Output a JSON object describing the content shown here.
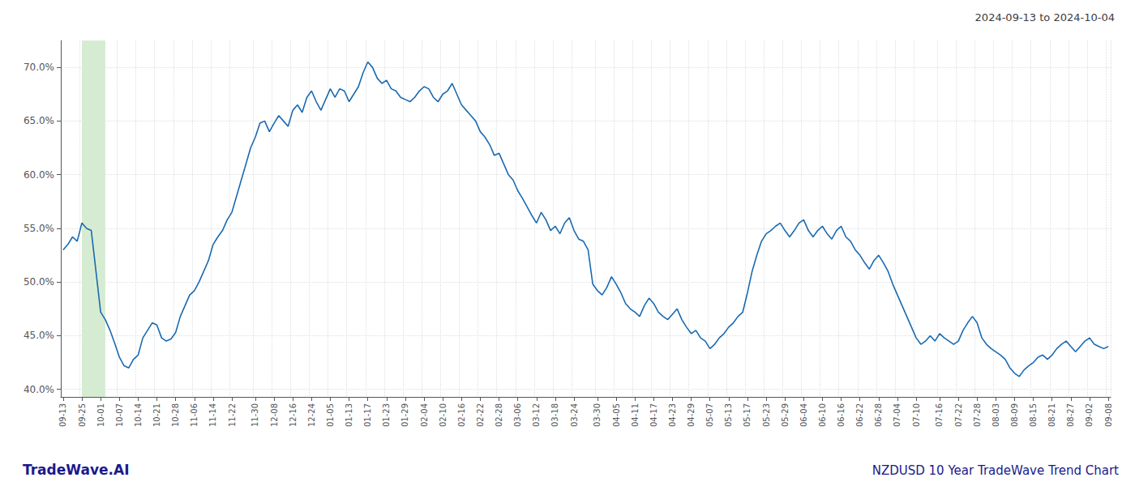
{
  "chart_data": {
    "type": "line",
    "title": "2024-09-13 to 2024-10-04",
    "annotations": [
      {
        "text": "TradeWave.AI",
        "color": "#1a1a8c"
      },
      {
        "text": "NZDUSD 10 Year TradeWave Trend Chart",
        "color": "#1a1a8c"
      }
    ],
    "color": "#1a6ab0",
    "grid": true,
    "highlight": {
      "x_start": 4,
      "x_end": 9,
      "color": "#d6ecd2"
    },
    "ylim": [
      0.393,
      0.725
    ],
    "yticks": [
      {
        "value": 0.4,
        "label": "40.0%"
      },
      {
        "value": 0.45,
        "label": "45.0%"
      },
      {
        "value": 0.5,
        "label": "50.0%"
      },
      {
        "value": 0.55,
        "label": "55.0%"
      },
      {
        "value": 0.6,
        "label": "60.0%"
      },
      {
        "value": 0.65,
        "label": "65.0%"
      },
      {
        "value": 0.7,
        "label": "70.0%"
      }
    ],
    "categories": [
      "09-13",
      null,
      null,
      null,
      "09-25",
      null,
      null,
      null,
      "10-01",
      null,
      null,
      null,
      "10-07",
      null,
      null,
      null,
      "10-14",
      null,
      null,
      null,
      "10-21",
      null,
      null,
      null,
      "10-28",
      null,
      null,
      null,
      "11-06",
      null,
      null,
      null,
      "11-14",
      null,
      null,
      null,
      "11-22",
      null,
      null,
      null,
      null,
      "11-30",
      null,
      null,
      null,
      "12-08",
      null,
      null,
      null,
      "12-16",
      null,
      null,
      null,
      "12-24",
      null,
      null,
      null,
      "01-05",
      null,
      null,
      null,
      "01-13",
      null,
      null,
      null,
      "01-17",
      null,
      null,
      null,
      "01-23",
      null,
      null,
      null,
      "01-29",
      null,
      null,
      null,
      "02-04",
      null,
      null,
      null,
      "02-10",
      null,
      null,
      null,
      "02-16",
      null,
      null,
      null,
      "02-22",
      null,
      null,
      null,
      "02-28",
      null,
      null,
      null,
      "03-06",
      null,
      null,
      null,
      "03-12",
      null,
      null,
      null,
      "03-18",
      null,
      null,
      null,
      "03-24",
      null,
      null,
      null,
      null,
      "03-30",
      null,
      null,
      null,
      "04-05",
      null,
      null,
      null,
      "04-11",
      null,
      null,
      null,
      "04-17",
      null,
      null,
      null,
      "04-23",
      null,
      null,
      null,
      "04-29",
      null,
      null,
      null,
      "05-07",
      null,
      null,
      null,
      "05-13",
      null,
      null,
      null,
      "05-17",
      null,
      null,
      null,
      "05-23",
      null,
      null,
      null,
      "05-29",
      null,
      null,
      null,
      "06-04",
      null,
      null,
      null,
      "06-10",
      null,
      null,
      null,
      "06-16",
      null,
      null,
      null,
      "06-22",
      null,
      null,
      null,
      "06-28",
      null,
      null,
      null,
      "07-04",
      null,
      null,
      null,
      "07-10",
      null,
      null,
      null,
      null,
      "07-16",
      null,
      null,
      null,
      "07-22",
      null,
      null,
      null,
      "07-28",
      null,
      null,
      null,
      "08-03",
      null,
      null,
      null,
      "08-09",
      null,
      null,
      null,
      "08-15",
      null,
      null,
      null,
      "08-21",
      null,
      null,
      null,
      "08-27",
      null,
      null,
      null,
      "09-02",
      null,
      null,
      null,
      "09-08"
    ],
    "values": [
      0.53,
      0.535,
      0.542,
      0.538,
      0.555,
      0.55,
      0.548,
      0.51,
      0.472,
      0.465,
      0.455,
      0.443,
      0.43,
      0.422,
      0.42,
      0.428,
      0.432,
      0.448,
      0.455,
      0.462,
      0.46,
      0.448,
      0.445,
      0.447,
      0.453,
      0.468,
      0.478,
      0.488,
      0.492,
      0.5,
      0.51,
      0.52,
      0.535,
      0.542,
      0.548,
      0.558,
      0.565,
      0.58,
      0.595,
      0.61,
      0.625,
      0.635,
      0.648,
      0.65,
      0.64,
      0.648,
      0.655,
      0.65,
      0.645,
      0.66,
      0.665,
      0.658,
      0.672,
      0.678,
      0.668,
      0.66,
      0.67,
      0.68,
      0.672,
      0.68,
      0.678,
      0.668,
      0.675,
      0.682,
      0.695,
      0.705,
      0.7,
      0.69,
      0.685,
      0.688,
      0.68,
      0.678,
      0.672,
      0.67,
      0.668,
      0.672,
      0.678,
      0.682,
      0.68,
      0.672,
      0.668,
      0.675,
      0.678,
      0.685,
      0.675,
      0.665,
      0.66,
      0.655,
      0.65,
      0.64,
      0.635,
      0.628,
      0.618,
      0.62,
      0.61,
      0.6,
      0.595,
      0.585,
      0.578,
      0.57,
      0.562,
      0.555,
      0.565,
      0.558,
      0.548,
      0.552,
      0.545,
      0.555,
      0.56,
      0.548,
      0.54,
      0.538,
      0.53,
      0.498,
      0.492,
      0.488,
      0.495,
      0.505,
      0.498,
      0.49,
      0.48,
      0.475,
      0.472,
      0.468,
      0.478,
      0.485,
      0.48,
      0.472,
      0.468,
      0.465,
      0.47,
      0.475,
      0.465,
      0.458,
      0.452,
      0.455,
      0.448,
      0.445,
      0.438,
      0.442,
      0.448,
      0.452,
      0.458,
      0.462,
      0.468,
      0.472,
      0.49,
      0.51,
      0.525,
      0.538,
      0.545,
      0.548,
      0.552,
      0.555,
      0.548,
      0.542,
      0.548,
      0.555,
      0.558,
      0.548,
      0.542,
      0.548,
      0.552,
      0.545,
      0.54,
      0.548,
      0.552,
      0.542,
      0.538,
      0.53,
      0.525,
      0.518,
      0.512,
      0.52,
      0.525,
      0.518,
      0.51,
      0.498,
      0.488,
      0.478,
      0.468,
      0.458,
      0.448,
      0.442,
      0.445,
      0.45,
      0.445,
      0.452,
      0.448,
      0.445,
      0.442,
      0.445,
      0.455,
      0.462,
      0.468,
      0.462,
      0.448,
      0.442,
      0.438,
      0.435,
      0.432,
      0.428,
      0.42,
      0.415,
      0.412,
      0.418,
      0.422,
      0.425,
      0.43,
      0.432,
      0.428,
      0.432,
      0.438,
      0.442,
      0.445,
      0.44,
      0.435,
      0.44,
      0.445,
      0.448,
      0.442,
      0.44,
      0.438,
      0.44
    ]
  }
}
